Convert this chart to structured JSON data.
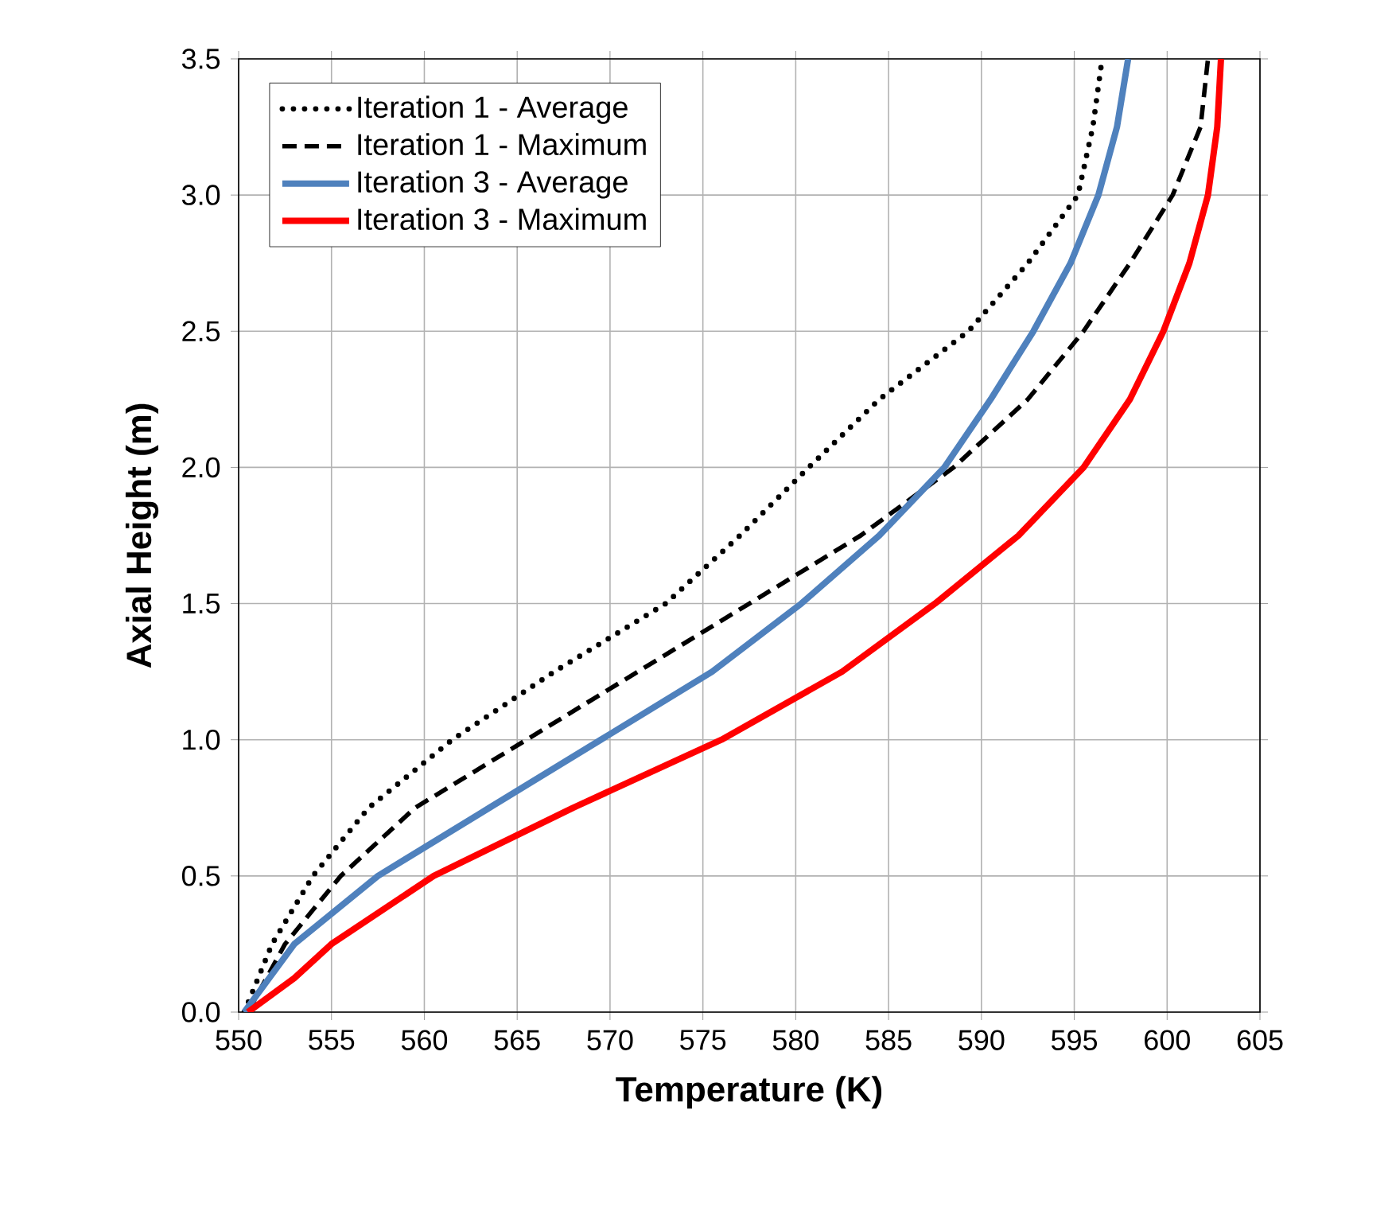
{
  "chart_data": {
    "type": "line",
    "xlabel": "Temperature (K)",
    "ylabel": "Axial Height (m)",
    "xlim": [
      550,
      605
    ],
    "ylim": [
      0,
      3.5
    ],
    "xticks": [
      550,
      555,
      560,
      565,
      570,
      575,
      580,
      585,
      590,
      595,
      600,
      605
    ],
    "yticks": [
      {
        "value": 0,
        "label": "0.0"
      },
      {
        "value": 0.5,
        "label": "0.5"
      },
      {
        "value": 1,
        "label": "1.0"
      },
      {
        "value": 1.5,
        "label": "1.5"
      },
      {
        "value": 2,
        "label": "2.0"
      },
      {
        "value": 2.5,
        "label": "2.5"
      },
      {
        "value": 3,
        "label": "3.0"
      },
      {
        "value": 3.5,
        "label": "3.5"
      }
    ],
    "grid": true,
    "legend": "top left",
    "marker": "none",
    "series": [
      {
        "name": "Iteration 1 - Average",
        "color": "#000000",
        "line_style": "dotted",
        "x": [
          550.3,
          551.8,
          554,
          557,
          561.5,
          567,
          573,
          577,
          580.7,
          584.5,
          589.3,
          592.5,
          595.2,
          596,
          596.5
        ],
        "values": [
          0,
          0.25,
          0.5,
          0.75,
          1,
          1.25,
          1.5,
          1.75,
          2,
          2.25,
          2.5,
          2.75,
          3,
          3.25,
          3.5
        ]
      },
      {
        "name": "Iteration 1 - Maximum",
        "color": "#000000",
        "line_style": "dashed",
        "x": [
          550.5,
          552.5,
          555.5,
          559.5,
          565.5,
          571.5,
          577.5,
          583.5,
          588.5,
          592.5,
          595.5,
          598,
          600.3,
          601.8,
          602.2
        ],
        "values": [
          0,
          0.25,
          0.5,
          0.75,
          1,
          1.25,
          1.5,
          1.75,
          2,
          2.25,
          2.5,
          2.75,
          3,
          3.25,
          3.5
        ]
      },
      {
        "name": "Iteration 3 - Average",
        "color": "#4f81bd",
        "line_style": "solid",
        "x": [
          550.3,
          553,
          557.5,
          563.5,
          569.5,
          575.5,
          580.3,
          584.5,
          588,
          590.5,
          592.8,
          594.8,
          596.3,
          597.3,
          597.9
        ],
        "values": [
          0,
          0.25,
          0.5,
          0.75,
          1,
          1.25,
          1.5,
          1.75,
          2,
          2.25,
          2.5,
          2.75,
          3,
          3.25,
          3.5
        ]
      },
      {
        "name": "Iteration 3 - Maximum",
        "color": "#ff0000",
        "line_style": "solid",
        "x": [
          550.5,
          553,
          555,
          560.5,
          568,
          576,
          582.5,
          587.5,
          592,
          595.5,
          598,
          599.8,
          601.2,
          602.2,
          602.7,
          602.9
        ],
        "values": [
          0,
          0.125,
          0.25,
          0.5,
          0.75,
          1,
          1.25,
          1.5,
          1.75,
          2,
          2.25,
          2.5,
          2.75,
          3,
          3.25,
          3.5
        ]
      }
    ]
  }
}
